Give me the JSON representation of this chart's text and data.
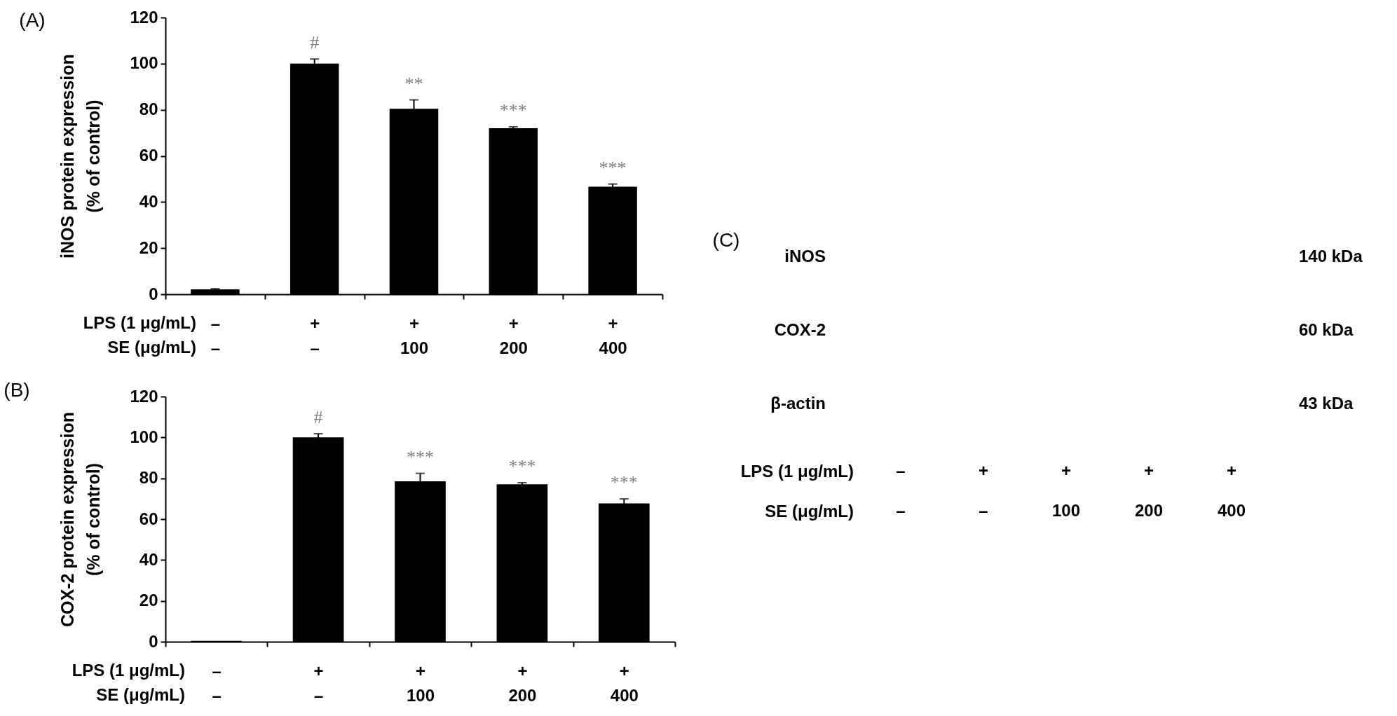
{
  "chart_data": [
    {
      "type": "bar",
      "title": "(A)",
      "ylabel": "iNOS protein expression\n(% of control)",
      "categories": [
        "–\n–",
        "+\n–",
        "+\n100",
        "+\n200",
        "+\n400"
      ],
      "values": [
        2.1,
        100,
        80.4,
        72,
        46.6
      ],
      "errors": [
        0.3,
        2,
        3.9,
        0.6,
        1.2
      ],
      "color": "#000000",
      "ylim": [
        0,
        120
      ],
      "yticks": [
        0,
        20,
        40,
        60,
        80,
        100,
        120
      ],
      "grid": false,
      "annotations": [
        "LPS (1 μg/mL)",
        "SE (μg/mL)",
        {
          "text": "#",
          "x": "+\n–",
          "y": 102
        },
        {
          "text": "**",
          "x": "+\n100",
          "y": 84.3
        },
        {
          "text": "***",
          "x": "+\n200",
          "y": 72.6
        },
        {
          "text": "***",
          "x": "+\n400",
          "y": 47.8
        }
      ]
    },
    {
      "type": "bar",
      "title": "(B)",
      "ylabel": "COX-2 protein expression\n(% of control)",
      "categories": [
        "–\n–",
        "+\n–",
        "+\n100",
        "+\n200",
        "+\n400"
      ],
      "values": [
        0.4,
        100,
        78.5,
        77.1,
        67.7
      ],
      "errors": [
        null,
        1.8,
        3.9,
        0.7,
        2.2
      ],
      "color": "#000000",
      "ylim": [
        0,
        120
      ],
      "yticks": [
        0,
        20,
        40,
        60,
        80,
        100,
        120
      ],
      "grid": false,
      "annotations": [
        "LPS (1 μg/mL)",
        "SE (μg/mL)",
        {
          "text": "#",
          "x": "+\n–",
          "y": 101.8
        },
        {
          "text": "***",
          "x": "+\n100",
          "y": 82.4
        },
        {
          "text": "***",
          "x": "+\n200",
          "y": 77.8
        },
        {
          "text": "***",
          "x": "+\n400",
          "y": 69.9
        }
      ]
    },
    {
      "type": "other",
      "title": "(C)",
      "categories": [
        "–\n–",
        "+\n–",
        "+\n100",
        "+\n200",
        "+\n400"
      ],
      "y_categories": [
        "iNOS",
        "COX-2",
        "β-actin"
      ],
      "y2_categories": [
        "140 kDa",
        "60 kDa",
        "43 kDa"
      ],
      "annotations": [
        "LPS (1 μg/mL)",
        "SE (μg/mL)"
      ]
    }
  ]
}
